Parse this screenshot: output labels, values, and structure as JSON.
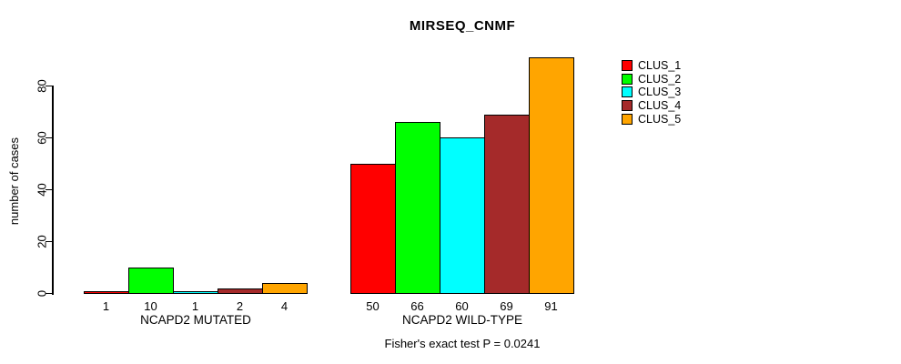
{
  "title": "MIRSEQ_CNMF",
  "y_axis_label": "number of cases",
  "caption": "Fisher's exact test P = 0.0241",
  "legend": {
    "position": "right",
    "items": [
      {
        "label": "CLUS_1",
        "color": "#FF0000"
      },
      {
        "label": "CLUS_2",
        "color": "#00FF00"
      },
      {
        "label": "CLUS_3",
        "color": "#00FFFF"
      },
      {
        "label": "CLUS_4",
        "color": "#A52A2A"
      },
      {
        "label": "CLUS_5",
        "color": "#FFA500"
      }
    ]
  },
  "chart_data": {
    "type": "bar",
    "title": "MIRSEQ_CNMF",
    "xlabel": "",
    "ylabel": "number of cases",
    "yticks": [
      0,
      20,
      40,
      60,
      80
    ],
    "ylim": [
      0,
      91
    ],
    "grid": false,
    "legend_position": "right",
    "categories": [
      "NCAPD2 MUTATED",
      "NCAPD2 WILD-TYPE"
    ],
    "series": [
      {
        "name": "CLUS_1",
        "color": "#FF0000",
        "values": [
          1,
          50
        ]
      },
      {
        "name": "CLUS_2",
        "color": "#00FF00",
        "values": [
          10,
          66
        ]
      },
      {
        "name": "CLUS_3",
        "color": "#00FFFF",
        "values": [
          1,
          60
        ]
      },
      {
        "name": "CLUS_4",
        "color": "#A52A2A",
        "values": [
          2,
          69
        ]
      },
      {
        "name": "CLUS_5",
        "color": "#FFA500",
        "values": [
          4,
          91
        ]
      }
    ],
    "bar_value_labels": {
      "NCAPD2 MUTATED": [
        1,
        10,
        1,
        2,
        4
      ],
      "NCAPD2 WILD-TYPE": [
        50,
        66,
        60,
        69,
        91
      ]
    },
    "annotation": "Fisher's exact test P = 0.0241"
  }
}
